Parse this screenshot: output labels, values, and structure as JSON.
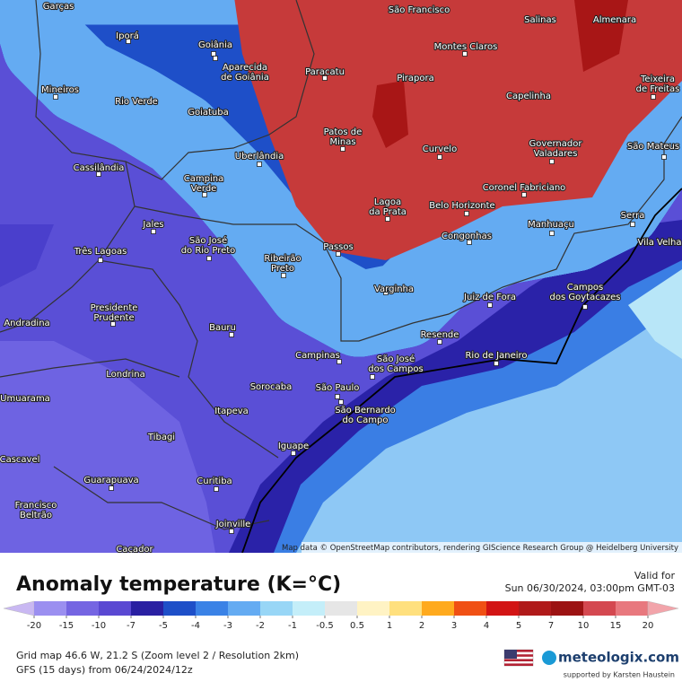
{
  "map": {
    "cities": [
      {
        "lines": [
          "Garças"
        ]
      },
      {
        "lines": [
          "Iporá"
        ]
      },
      {
        "lines": [
          "Goiânia"
        ]
      },
      {
        "lines": [
          "Aparecida",
          "de Goiânia"
        ]
      },
      {
        "lines": [
          "São Francisco"
        ]
      },
      {
        "lines": [
          "Salinas"
        ]
      },
      {
        "lines": [
          "Almenara"
        ]
      },
      {
        "lines": [
          "Montes Claros"
        ]
      },
      {
        "lines": [
          "Paracatu"
        ]
      },
      {
        "lines": [
          "Pirapora"
        ]
      },
      {
        "lines": [
          "Teixeira",
          "de Freitas"
        ]
      },
      {
        "lines": [
          "Mineiros"
        ]
      },
      {
        "lines": [
          "Rio Verde"
        ]
      },
      {
        "lines": [
          "Goiatuba"
        ]
      },
      {
        "lines": [
          "Capelinha"
        ]
      },
      {
        "lines": [
          "Patos de",
          "Minas"
        ]
      },
      {
        "lines": [
          "Curvelo"
        ]
      },
      {
        "lines": [
          "Governador",
          "Valadares"
        ]
      },
      {
        "lines": [
          "São Mateus"
        ]
      },
      {
        "lines": [
          "Uberlândia"
        ]
      },
      {
        "lines": [
          "Cassilândia"
        ]
      },
      {
        "lines": [
          "Campina",
          "Verde"
        ]
      },
      {
        "lines": [
          "Coronel Fabriciano"
        ]
      },
      {
        "lines": [
          "Lagoa",
          "da Prata"
        ]
      },
      {
        "lines": [
          "Belo Horizonte"
        ]
      },
      {
        "lines": [
          "Manhuaçu"
        ]
      },
      {
        "lines": [
          "Serra"
        ]
      },
      {
        "lines": [
          "Jales"
        ]
      },
      {
        "lines": [
          "São José",
          "do Rio Preto"
        ]
      },
      {
        "lines": [
          "Congonhas"
        ]
      },
      {
        "lines": [
          "Vila Velha"
        ]
      },
      {
        "lines": [
          "Três Lagoas"
        ]
      },
      {
        "lines": [
          "Passos"
        ]
      },
      {
        "lines": [
          "Ribeirão",
          "Preto"
        ]
      },
      {
        "lines": [
          "Varginha"
        ]
      },
      {
        "lines": [
          "Campos",
          "dos Goytacazes"
        ]
      },
      {
        "lines": [
          "Juiz de Fora"
        ]
      },
      {
        "lines": [
          "Presidente",
          "Prudente"
        ]
      },
      {
        "lines": [
          "Andradina"
        ]
      },
      {
        "lines": [
          "Bauru"
        ]
      },
      {
        "lines": [
          "Resende"
        ]
      },
      {
        "lines": [
          "Campinas"
        ]
      },
      {
        "lines": [
          "São José",
          "dos Campos"
        ]
      },
      {
        "lines": [
          "Rio de Janeiro"
        ]
      },
      {
        "lines": [
          "Londrina"
        ]
      },
      {
        "lines": [
          "Sorocaba"
        ]
      },
      {
        "lines": [
          "São Paulo"
        ]
      },
      {
        "lines": [
          "Umuarama"
        ]
      },
      {
        "lines": [
          "São Bernardo",
          "do Campo"
        ]
      },
      {
        "lines": [
          "Itapeva"
        ]
      },
      {
        "lines": [
          "Tibagi"
        ]
      },
      {
        "lines": [
          "Iguape"
        ]
      },
      {
        "lines": [
          "Cascavel"
        ]
      },
      {
        "lines": [
          "Guarapuava"
        ]
      },
      {
        "lines": [
          "Curitiba"
        ]
      },
      {
        "lines": [
          "Francisco",
          "Beltrão"
        ]
      },
      {
        "lines": [
          "Joinville"
        ]
      },
      {
        "lines": [
          "Caçador"
        ]
      }
    ],
    "attribution": "Map data © OpenStreetMap contributors, rendering GIScience Research Group @ Heidelberg University"
  },
  "panel": {
    "title": "Anomaly temperature (K=°C)",
    "valid_label": "Valid for",
    "valid_time": "Sun 06/30/2024, 03:00pm GMT-03",
    "grid_info": "Grid map 46.6 W, 21.2 S (Zoom level 2 / Resolution 2km)",
    "model_info": "GFS (15 days) from 06/24/2024/12z",
    "brand": "meteologix.com",
    "support": "supported by Karsten Haustein"
  },
  "legend": {
    "ticks": [
      -20,
      -15,
      -10,
      -7,
      -5,
      -4,
      -3,
      -2,
      -1,
      -0.5,
      0.5,
      1,
      2,
      3,
      4,
      5,
      7,
      10,
      15,
      20
    ],
    "colors": [
      "#c9b8f2",
      "#9b8ff0",
      "#7565e2",
      "#5a48d2",
      "#2a20a2",
      "#1e4fc8",
      "#3a82e6",
      "#64abf2",
      "#98d6f6",
      "#c4eef9",
      "#e6e6e6",
      "#fff3c4",
      "#ffe07e",
      "#ffaa1e",
      "#f05014",
      "#d21414",
      "#b01a1a",
      "#9c1212",
      "#d44850",
      "#e8787e",
      "#f2a4aa"
    ]
  }
}
